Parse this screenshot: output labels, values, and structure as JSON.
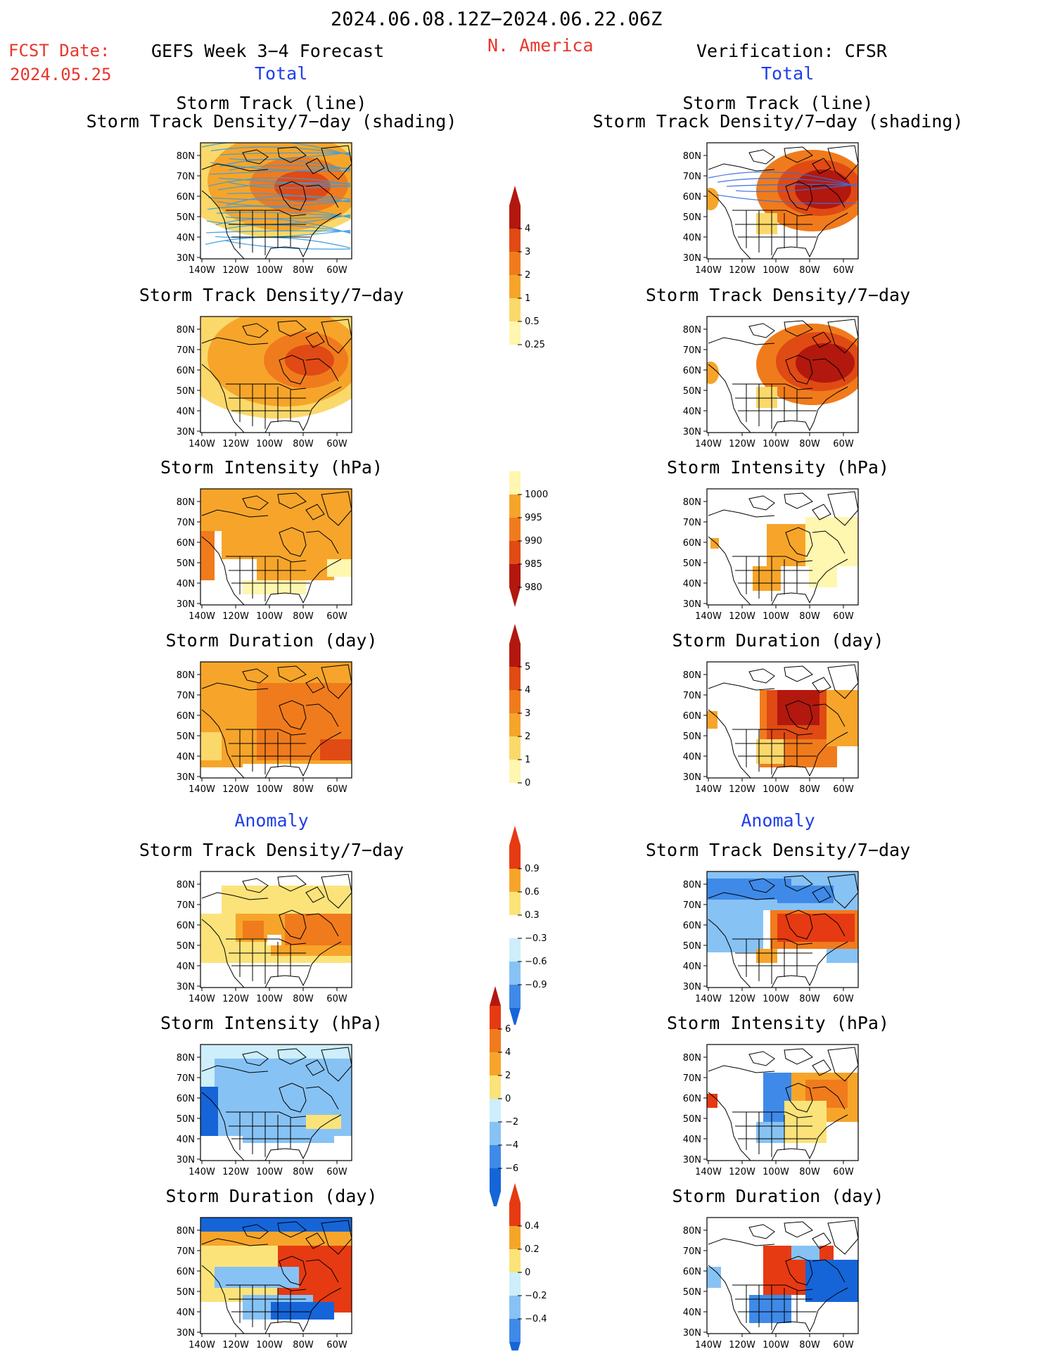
{
  "header": {
    "period": "2024.06.08.12Z−2024.06.22.06Z",
    "fcst_label": "FCST Date:",
    "fcst_date": "2024.05.25",
    "region": "N. America",
    "left_title": "GEFS Week 3−4 Forecast",
    "right_title": "Verification: CFSR",
    "left_sub": "Total",
    "right_sub": "Total"
  },
  "section_titles": {
    "anomaly_left": "Anomaly",
    "anomaly_right": "Anomaly"
  },
  "panel_titles": {
    "track_line": "Storm Track (line)",
    "track_shading": "Storm Track Density/7−day (shading)",
    "density": "Storm Track Density/7−day",
    "intensity": "Storm Intensity (hPa)",
    "duration": "Storm Duration (day)"
  },
  "axes": {
    "lat_ticks": [
      "80N",
      "70N",
      "60N",
      "50N",
      "40N",
      "30N"
    ],
    "lon_ticks": [
      "140W",
      "120W",
      "100W",
      "80W",
      "60W"
    ]
  },
  "colorbars": {
    "density_total": [
      "4",
      "3",
      "2",
      "1",
      "0.5",
      "0.25"
    ],
    "intensity_total": [
      "1000",
      "995",
      "990",
      "985",
      "980"
    ],
    "duration_total": [
      "5",
      "4",
      "3",
      "2",
      "1",
      "0"
    ],
    "density_anom": [
      "0.9",
      "0.6",
      "0.3",
      "−0.3",
      "−0.6",
      "−0.9"
    ],
    "intensity_anom": [
      "6",
      "4",
      "2",
      "0",
      "−2",
      "−4",
      "−6"
    ],
    "duration_anom": [
      "0.4",
      "0.2",
      "0",
      "−0.2",
      "−0.4"
    ]
  },
  "palettes": {
    "warm": [
      "#fff6b0",
      "#fbd86a",
      "#f6a52a",
      "#f07b1c",
      "#e04a14",
      "#b2180e"
    ],
    "intensity": [
      "#fff6b0",
      "#f6a52a",
      "#f07b1c",
      "#e04a14",
      "#b2180e"
    ],
    "diverging": [
      "#1565d8",
      "#3f8ae8",
      "#87c2f4",
      "#cdeefa",
      "#ffffff",
      "#fbe37a",
      "#f6a52a",
      "#f07b1c",
      "#e63a12"
    ],
    "track_line_color": "#3a9ee0"
  }
}
